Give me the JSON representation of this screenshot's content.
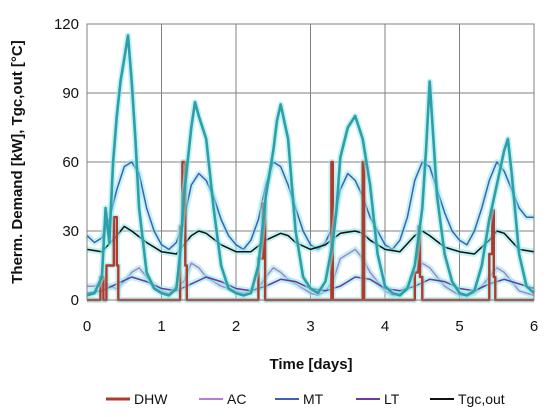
{
  "chart_data": {
    "type": "line",
    "title": "",
    "xlabel": "Time [days]",
    "ylabel": "Therm. Demand [kW], Tgc,out [°C]",
    "xlim": [
      0,
      6
    ],
    "ylim": [
      0,
      120
    ],
    "xticks": [
      "0",
      "1",
      "2",
      "3",
      "4",
      "5",
      "6"
    ],
    "yticks": [
      "0",
      "30",
      "60",
      "90",
      "120"
    ],
    "grid": true,
    "legend": "bottom",
    "series": [
      {
        "name": "DHW",
        "color": "#b03a2e",
        "glow": "#8fe8e8",
        "x": [
          0,
          0.18,
          0.18,
          0.22,
          0.22,
          0.26,
          0.26,
          0.36,
          0.36,
          0.4,
          0.4,
          0.42,
          0.42,
          1.25,
          1.25,
          1.28,
          1.28,
          1.32,
          1.32,
          1.34,
          1.34,
          1.36,
          1.36,
          2.3,
          2.3,
          2.36,
          2.36,
          2.39,
          2.39,
          2.42,
          2.42,
          3.28,
          3.28,
          3.3,
          3.3,
          3.32,
          3.32,
          3.7,
          3.7,
          3.72,
          3.72,
          4.4,
          4.4,
          4.45,
          4.45,
          4.47,
          4.47,
          4.5,
          4.5,
          4.52,
          4.52,
          5.4,
          5.4,
          5.44,
          5.44,
          5.46,
          5.46,
          5.48,
          5.48,
          5.55,
          5.55,
          6
        ],
        "y": [
          0,
          0,
          10,
          10,
          0,
          0,
          15,
          15,
          36,
          36,
          15,
          15,
          0,
          0,
          32,
          32,
          60,
          60,
          15,
          15,
          0,
          0,
          0,
          0,
          18,
          18,
          42,
          42,
          0,
          0,
          0,
          0,
          60,
          60,
          0,
          0,
          0,
          0,
          60,
          60,
          0,
          0,
          12,
          12,
          32,
          32,
          10,
          10,
          0,
          0,
          0,
          0,
          20,
          20,
          39,
          39,
          10,
          10,
          0,
          0,
          0,
          0
        ]
      },
      {
        "name": "AC",
        "color": "#b07fcf",
        "glow": "#8fe8e8",
        "x": [
          0,
          0.1,
          0.2,
          0.3,
          0.4,
          0.5,
          0.6,
          0.7,
          0.8,
          0.9,
          1.0,
          1.1,
          1.2,
          1.3,
          1.4,
          1.5,
          1.6,
          1.7,
          1.8,
          1.9,
          2.0,
          2.1,
          2.2,
          2.3,
          2.4,
          2.5,
          2.6,
          2.7,
          2.8,
          2.9,
          3.0,
          3.1,
          3.2,
          3.3,
          3.4,
          3.5,
          3.6,
          3.7,
          3.8,
          3.9,
          4.0,
          4.1,
          4.2,
          4.3,
          4.4,
          4.5,
          4.6,
          4.7,
          4.8,
          4.9,
          5.0,
          5.1,
          5.2,
          5.3,
          5.4,
          5.5,
          5.6,
          5.7,
          5.8,
          5.9,
          6.0
        ],
        "y": [
          6,
          6,
          7,
          6,
          5,
          8,
          12,
          14,
          10,
          6,
          4,
          3,
          6,
          8,
          16,
          14,
          10,
          8,
          6,
          5,
          4,
          3,
          4,
          5,
          10,
          14,
          12,
          9,
          7,
          5,
          3,
          2,
          4,
          8,
          18,
          20,
          22,
          18,
          12,
          8,
          4,
          2,
          3,
          6,
          12,
          16,
          14,
          10,
          6,
          4,
          2,
          2,
          3,
          6,
          10,
          14,
          12,
          8,
          4,
          3,
          2
        ]
      },
      {
        "name": "MT",
        "color": "#3f5fb5",
        "glow": "#8fe8e8",
        "x": [
          0,
          0.1,
          0.2,
          0.3,
          0.4,
          0.5,
          0.6,
          0.7,
          0.8,
          0.9,
          1.0,
          1.1,
          1.2,
          1.3,
          1.4,
          1.5,
          1.6,
          1.7,
          1.8,
          1.9,
          2.0,
          2.1,
          2.2,
          2.3,
          2.4,
          2.5,
          2.6,
          2.7,
          2.8,
          2.9,
          3.0,
          3.1,
          3.2,
          3.3,
          3.4,
          3.5,
          3.6,
          3.7,
          3.8,
          3.9,
          4.0,
          4.1,
          4.2,
          4.3,
          4.4,
          4.5,
          4.6,
          4.7,
          4.8,
          4.9,
          5.0,
          5.1,
          5.2,
          5.3,
          5.4,
          5.5,
          5.6,
          5.7,
          5.8,
          5.9,
          6.0
        ],
        "y": [
          28,
          25,
          27,
          35,
          48,
          58,
          60,
          55,
          40,
          30,
          24,
          22,
          25,
          35,
          50,
          55,
          52,
          45,
          35,
          28,
          24,
          22,
          26,
          35,
          50,
          60,
          58,
          50,
          40,
          30,
          24,
          22,
          25,
          32,
          48,
          55,
          52,
          45,
          36,
          30,
          24,
          22,
          26,
          36,
          52,
          60,
          58,
          48,
          38,
          30,
          26,
          24,
          30,
          40,
          52,
          60,
          56,
          48,
          40,
          36,
          36
        ]
      },
      {
        "name": "LT",
        "color": "#6a3a9e",
        "glow": "#8fe8e8",
        "x": [
          0,
          0.2,
          0.4,
          0.6,
          0.8,
          1.0,
          1.2,
          1.4,
          1.6,
          1.8,
          2.0,
          2.2,
          2.4,
          2.6,
          2.8,
          3.0,
          3.2,
          3.4,
          3.6,
          3.8,
          4.0,
          4.2,
          4.4,
          4.6,
          4.8,
          5.0,
          5.2,
          5.4,
          5.6,
          5.8,
          6.0
        ],
        "y": [
          3,
          4,
          7,
          10,
          8,
          5,
          4,
          7,
          10,
          8,
          5,
          4,
          6,
          9,
          8,
          5,
          4,
          6,
          10,
          9,
          5,
          4,
          6,
          9,
          8,
          5,
          4,
          7,
          9,
          7,
          5
        ]
      },
      {
        "name": "Tgc,out",
        "color": "#111111",
        "glow": "#8fe8e8",
        "x": [
          0,
          0.2,
          0.4,
          0.5,
          0.6,
          0.8,
          1.0,
          1.2,
          1.4,
          1.5,
          1.6,
          1.8,
          2.0,
          2.2,
          2.4,
          2.6,
          2.7,
          2.8,
          3.0,
          3.2,
          3.4,
          3.6,
          3.7,
          3.8,
          4.0,
          4.2,
          4.4,
          4.5,
          4.6,
          4.8,
          5.0,
          5.2,
          5.4,
          5.5,
          5.6,
          5.8,
          6.0
        ],
        "y": [
          22,
          21,
          28,
          32,
          30,
          25,
          21,
          20,
          28,
          30,
          29,
          24,
          21,
          21,
          26,
          29,
          28,
          25,
          22,
          24,
          29,
          30,
          29,
          26,
          22,
          21,
          28,
          30,
          28,
          23,
          21,
          20,
          26,
          30,
          29,
          22,
          21
        ]
      },
      {
        "name": "",
        "color": "#2e9ea8",
        "glow": "#8fe8e8",
        "x": [
          0,
          0.1,
          0.2,
          0.25,
          0.3,
          0.35,
          0.4,
          0.45,
          0.5,
          0.55,
          0.6,
          0.65,
          0.7,
          0.8,
          0.9,
          1.0,
          1.1,
          1.2,
          1.25,
          1.3,
          1.35,
          1.4,
          1.45,
          1.5,
          1.6,
          1.7,
          1.8,
          1.9,
          2.0,
          2.1,
          2.2,
          2.3,
          2.35,
          2.4,
          2.5,
          2.55,
          2.6,
          2.7,
          2.8,
          2.9,
          3.0,
          3.1,
          3.2,
          3.3,
          3.35,
          3.4,
          3.5,
          3.6,
          3.7,
          3.8,
          3.9,
          4.0,
          4.1,
          4.2,
          4.3,
          4.4,
          4.5,
          4.55,
          4.6,
          4.7,
          4.8,
          4.9,
          5.0,
          5.1,
          5.2,
          5.3,
          5.4,
          5.5,
          5.6,
          5.65,
          5.7,
          5.8,
          5.9,
          6.0
        ],
        "y": [
          2,
          3,
          10,
          40,
          25,
          60,
          80,
          95,
          105,
          115,
          95,
          70,
          40,
          12,
          5,
          3,
          2,
          5,
          20,
          45,
          60,
          75,
          86,
          80,
          70,
          40,
          15,
          5,
          3,
          2,
          3,
          15,
          30,
          45,
          65,
          78,
          85,
          70,
          30,
          10,
          5,
          3,
          8,
          25,
          40,
          62,
          75,
          80,
          70,
          50,
          20,
          6,
          3,
          2,
          5,
          15,
          40,
          65,
          95,
          45,
          20,
          8,
          3,
          2,
          4,
          15,
          35,
          50,
          65,
          70,
          55,
          20,
          6,
          3
        ]
      }
    ]
  }
}
